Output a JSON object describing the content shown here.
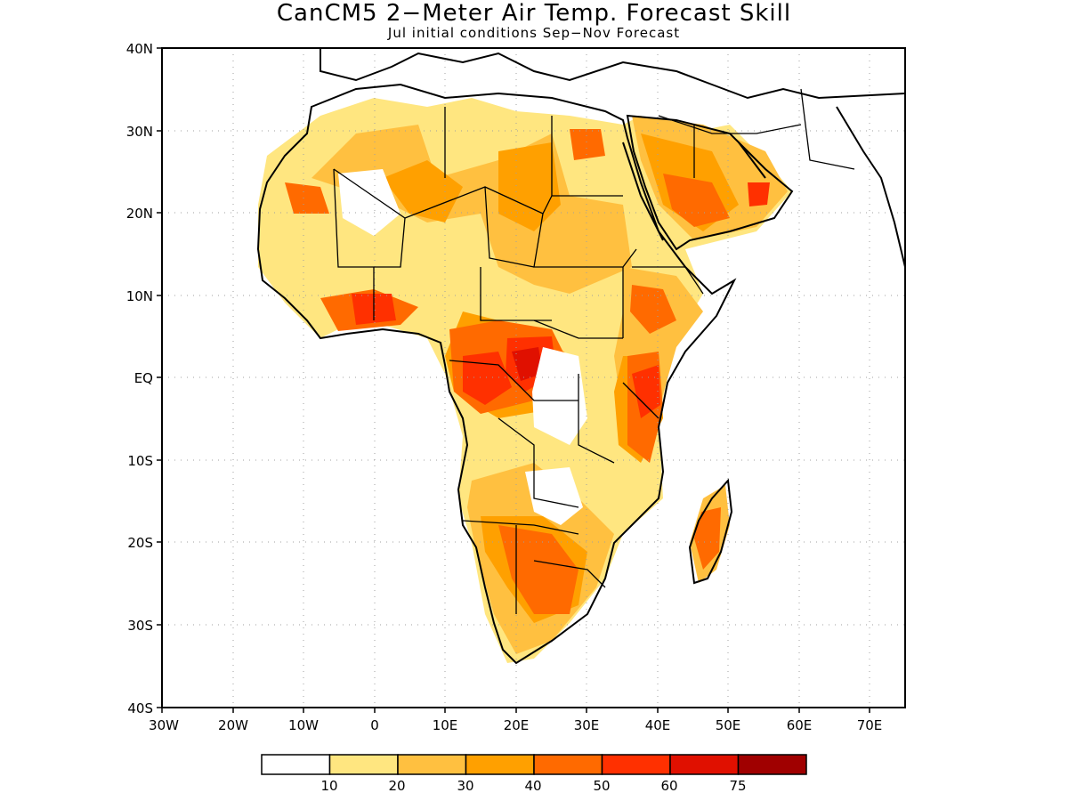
{
  "title": "CanCM5 2−Meter Air Temp. Forecast Skill",
  "subtitle": "Jul initial conditions   Sep−Nov Forecast",
  "map": {
    "lon_range": [
      -30,
      75
    ],
    "lat_range": [
      -40,
      40
    ],
    "grid": "dotted",
    "lat_labels": [
      "40N",
      "30N",
      "20N",
      "10N",
      "EQ",
      "10S",
      "20S",
      "30S",
      "40S"
    ],
    "lon_labels": [
      "30W",
      "20W",
      "10W",
      "0",
      "10E",
      "20E",
      "30E",
      "40E",
      "50E",
      "60E",
      "70E"
    ]
  },
  "colorbar": {
    "colors": [
      "#ffffff",
      "#ffe680",
      "#ffc040",
      "#ffa000",
      "#ff6a00",
      "#ff3000",
      "#e01000",
      "#a00000"
    ],
    "labels": [
      "10",
      "20",
      "30",
      "40",
      "50",
      "60",
      "75"
    ]
  }
}
